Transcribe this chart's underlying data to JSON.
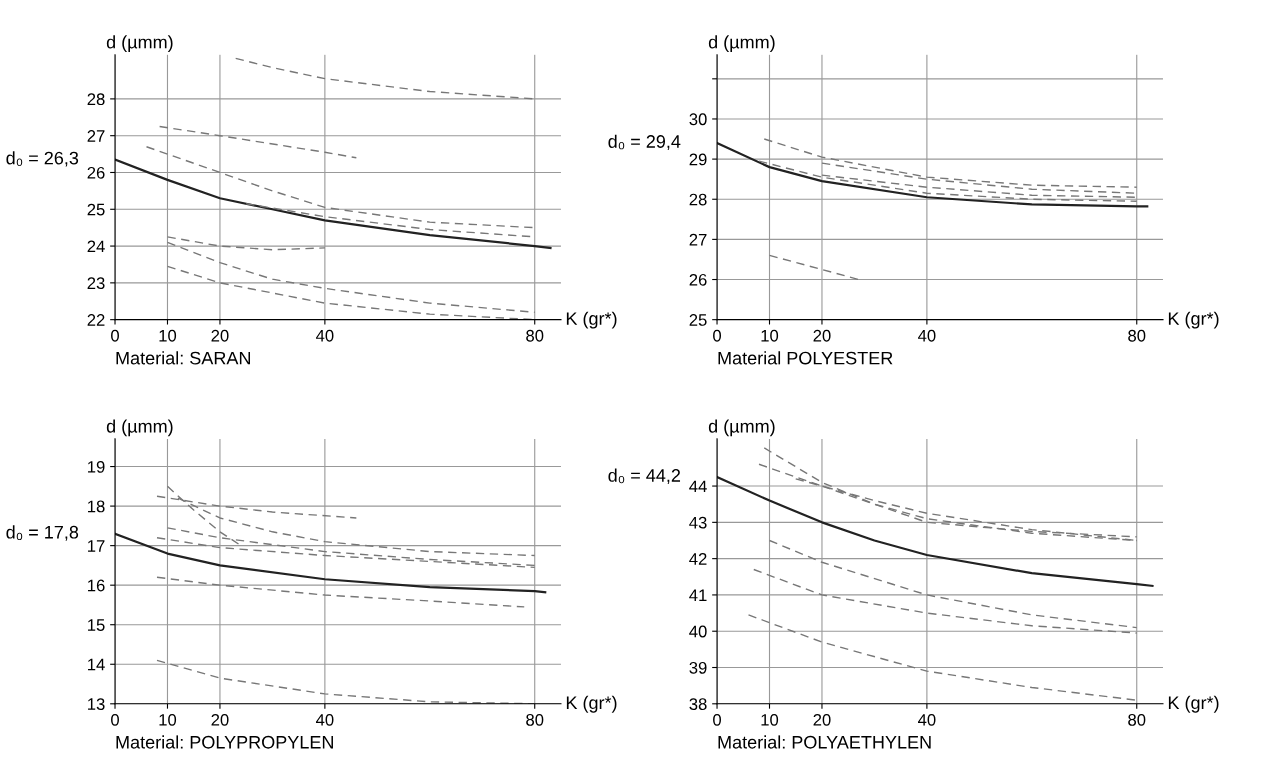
{
  "chart_data": [
    {
      "type": "line",
      "title": "Material: SARAN",
      "xlabel": "K (gr*)",
      "ylabel": "d (µmm)",
      "annotations": [
        "d₀ = 26,3"
      ],
      "xlim": [
        0,
        85
      ],
      "xticks": [
        0,
        10,
        20,
        40,
        80
      ],
      "ylim": [
        22,
        29.2
      ],
      "yticks": [
        22,
        23,
        24,
        25,
        26,
        27,
        28
      ],
      "grid": true,
      "series": [
        {
          "color": "#222222",
          "line_style": "solid",
          "x": [
            0,
            10,
            20,
            30,
            40,
            60,
            80,
            83
          ],
          "values": [
            26.35,
            25.8,
            25.3,
            25.0,
            24.7,
            24.3,
            24.0,
            23.95
          ]
        },
        {
          "color": "#777777",
          "line_style": "dashed",
          "x": [
            23,
            30,
            40,
            60,
            80
          ],
          "values": [
            29.1,
            28.85,
            28.55,
            28.2,
            28.0
          ]
        },
        {
          "color": "#777777",
          "line_style": "dashed",
          "x": [
            8.5,
            20,
            40,
            46
          ],
          "values": [
            27.25,
            27.0,
            26.55,
            26.4
          ]
        },
        {
          "color": "#777777",
          "line_style": "dashed",
          "x": [
            6,
            10,
            20,
            30,
            40,
            60,
            80
          ],
          "values": [
            26.7,
            26.5,
            26.0,
            25.5,
            25.05,
            24.65,
            24.5
          ]
        },
        {
          "color": "#777777",
          "line_style": "dashed",
          "x": [
            25,
            40,
            60,
            80
          ],
          "values": [
            25.15,
            24.8,
            24.45,
            24.25
          ]
        },
        {
          "color": "#777777",
          "line_style": "dashed",
          "x": [
            10,
            20,
            30,
            40
          ],
          "values": [
            24.25,
            24.0,
            23.9,
            23.95
          ]
        },
        {
          "color": "#777777",
          "line_style": "dashed",
          "x": [
            10,
            20,
            30,
            40,
            60,
            80
          ],
          "values": [
            24.1,
            23.55,
            23.1,
            22.85,
            22.45,
            22.2
          ]
        },
        {
          "color": "#777777",
          "line_style": "dashed",
          "x": [
            10,
            20,
            40,
            60,
            80
          ],
          "values": [
            23.45,
            23.0,
            22.45,
            22.15,
            22.0
          ]
        }
      ]
    },
    {
      "type": "line",
      "title": "Material POLYESTER",
      "xlabel": "K (gr*)",
      "ylabel": "d (µmm)",
      "annotations": [
        "d₀ = 29,4"
      ],
      "xlim": [
        0,
        85
      ],
      "xticks": [
        0,
        10,
        20,
        40,
        80
      ],
      "ylim": [
        25,
        31.6
      ],
      "yticks": [
        25,
        26,
        27,
        28,
        29,
        30,
        {
          "value": 31,
          "label": null
        }
      ],
      "grid": true,
      "series": [
        {
          "color": "#222222",
          "line_style": "solid",
          "x": [
            0,
            10,
            20,
            40,
            60,
            80,
            82
          ],
          "values": [
            29.4,
            28.8,
            28.45,
            28.05,
            27.87,
            27.82,
            27.82
          ]
        },
        {
          "color": "#777777",
          "line_style": "dashed",
          "x": [
            9,
            20,
            40,
            60,
            80
          ],
          "values": [
            29.5,
            29.05,
            28.55,
            28.35,
            28.3
          ]
        },
        {
          "color": "#777777",
          "line_style": "dashed",
          "x": [
            20,
            40,
            60,
            80
          ],
          "values": [
            28.9,
            28.5,
            28.25,
            28.15
          ]
        },
        {
          "color": "#777777",
          "line_style": "dashed",
          "x": [
            20,
            40,
            60,
            80
          ],
          "values": [
            28.6,
            28.3,
            28.1,
            28.05
          ]
        },
        {
          "color": "#777777",
          "line_style": "dashed",
          "x": [
            8,
            20,
            40,
            60,
            80
          ],
          "values": [
            28.95,
            28.55,
            28.15,
            28.0,
            27.95
          ]
        },
        {
          "color": "#777777",
          "line_style": "dashed",
          "x": [
            10,
            20,
            27
          ],
          "values": [
            26.6,
            26.25,
            26.0
          ]
        }
      ]
    },
    {
      "type": "line",
      "title": "Material: POLYPROPYLEN",
      "xlabel": "K (gr*)",
      "ylabel": "d (µmm)",
      "annotations": [
        "d₀ = 17,8"
      ],
      "xlim": [
        0,
        85
      ],
      "xticks": [
        0,
        10,
        20,
        40,
        80
      ],
      "ylim": [
        13,
        19.7
      ],
      "yticks": [
        13,
        14,
        15,
        16,
        17,
        18,
        19
      ],
      "grid": true,
      "series": [
        {
          "color": "#222222",
          "line_style": "solid",
          "x": [
            0,
            10,
            20,
            40,
            60,
            80,
            82
          ],
          "values": [
            17.3,
            16.8,
            16.5,
            16.15,
            15.95,
            15.85,
            15.82
          ]
        },
        {
          "color": "#777777",
          "line_style": "dashed",
          "x": [
            10,
            15,
            20,
            24
          ],
          "values": [
            18.5,
            17.9,
            17.35,
            17.0
          ]
        },
        {
          "color": "#777777",
          "line_style": "dashed",
          "x": [
            8,
            20,
            30,
            46
          ],
          "values": [
            18.25,
            18.0,
            17.85,
            17.7
          ]
        },
        {
          "color": "#777777",
          "line_style": "dashed",
          "x": [
            12,
            20,
            30,
            40,
            60,
            80
          ],
          "values": [
            18.2,
            17.7,
            17.35,
            17.1,
            16.85,
            16.75
          ]
        },
        {
          "color": "#777777",
          "line_style": "dashed",
          "x": [
            10,
            20,
            40,
            60,
            80
          ],
          "values": [
            17.45,
            17.2,
            16.85,
            16.65,
            16.5
          ]
        },
        {
          "color": "#777777",
          "line_style": "dashed",
          "x": [
            8,
            20,
            40,
            60,
            80
          ],
          "values": [
            17.2,
            16.95,
            16.75,
            16.6,
            16.45
          ]
        },
        {
          "color": "#777777",
          "line_style": "dashed",
          "x": [
            8,
            20,
            40,
            60,
            78
          ],
          "values": [
            16.2,
            16.0,
            15.75,
            15.6,
            15.45
          ]
        },
        {
          "color": "#777777",
          "line_style": "dashed",
          "x": [
            8,
            20,
            40,
            60,
            80
          ],
          "values": [
            14.1,
            13.65,
            13.25,
            13.05,
            13.0
          ]
        }
      ]
    },
    {
      "type": "line",
      "title": "Material: POLYAETHYLEN",
      "xlabel": "K (gr*)",
      "ylabel": "d (µmm)",
      "annotations": [
        "d₀ = 44,2"
      ],
      "xlim": [
        0,
        85
      ],
      "xticks": [
        0,
        10,
        20,
        40,
        80
      ],
      "ylim": [
        38,
        45.3
      ],
      "yticks": [
        38,
        39,
        40,
        41,
        42,
        43,
        44
      ],
      "grid": true,
      "series": [
        {
          "color": "#222222",
          "line_style": "solid",
          "x": [
            0,
            10,
            20,
            30,
            40,
            60,
            80,
            83
          ],
          "values": [
            44.25,
            43.6,
            43.0,
            42.5,
            42.1,
            41.6,
            41.3,
            41.25
          ]
        },
        {
          "color": "#777777",
          "line_style": "dashed",
          "x": [
            9,
            20,
            30,
            40,
            60,
            80
          ],
          "values": [
            45.05,
            44.1,
            43.5,
            43.1,
            42.7,
            42.5
          ]
        },
        {
          "color": "#777777",
          "line_style": "dashed",
          "x": [
            8,
            20,
            30,
            40,
            60,
            80
          ],
          "values": [
            44.6,
            44.0,
            43.6,
            43.25,
            42.8,
            42.5
          ]
        },
        {
          "color": "#777777",
          "line_style": "dashed",
          "x": [
            15,
            20,
            40,
            60,
            80
          ],
          "values": [
            44.2,
            44.0,
            43.0,
            42.75,
            42.6
          ]
        },
        {
          "color": "#777777",
          "line_style": "dashed",
          "x": [
            10,
            20,
            40,
            60,
            80
          ],
          "values": [
            42.5,
            41.9,
            41.0,
            40.45,
            40.1
          ]
        },
        {
          "color": "#777777",
          "line_style": "dashed",
          "x": [
            7,
            20,
            40,
            60,
            80
          ],
          "values": [
            41.7,
            41.0,
            40.5,
            40.15,
            39.95
          ]
        },
        {
          "color": "#777777",
          "line_style": "dashed",
          "x": [
            6,
            20,
            40,
            60,
            80
          ],
          "values": [
            40.45,
            39.7,
            38.9,
            38.45,
            38.1
          ]
        }
      ]
    }
  ]
}
